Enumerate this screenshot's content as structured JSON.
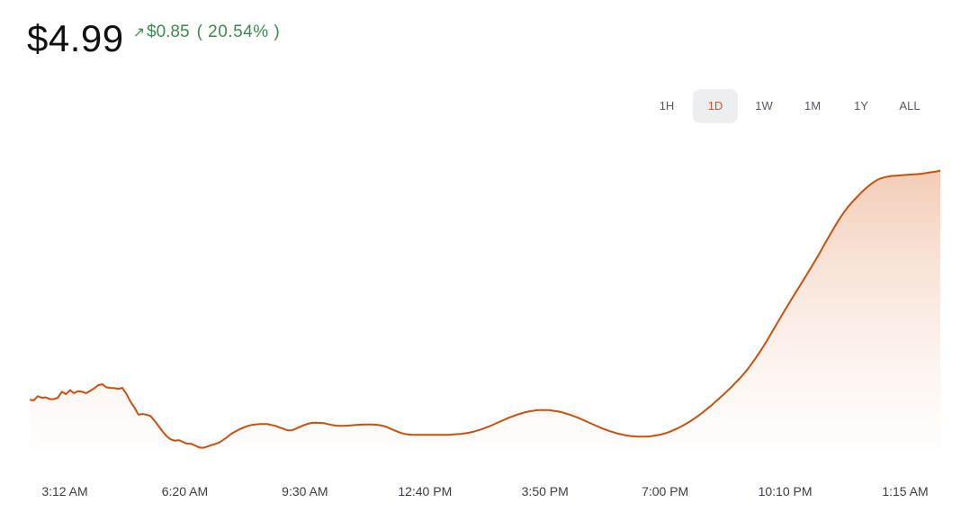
{
  "header": {
    "price": "$4.99",
    "change_arrow_icon": "arrow-up-right-icon",
    "change_amount": "$0.85",
    "change_percent": "( 20.54% )",
    "change_color": "#3d8a51"
  },
  "ranges": [
    {
      "label": "1H",
      "active": false
    },
    {
      "label": "1D",
      "active": true
    },
    {
      "label": "1W",
      "active": false
    },
    {
      "label": "1M",
      "active": false
    },
    {
      "label": "1Y",
      "active": false
    },
    {
      "label": "ALL",
      "active": false
    }
  ],
  "chart_data": {
    "type": "area",
    "color": "#c8500f",
    "x_tick_labels": [
      "3:12 AM",
      "6:20 AM",
      "9:30 AM",
      "12:40 PM",
      "3:50 PM",
      "7:00 PM",
      "10:10 PM",
      "1:15 AM"
    ],
    "y_range": [
      4.04,
      5.01
    ],
    "series": [
      {
        "values": [
          4.218,
          4.216,
          4.23,
          4.225,
          4.226,
          4.22,
          4.22,
          4.225,
          4.245,
          4.237,
          4.25,
          4.24,
          4.247,
          4.245,
          4.24,
          4.248,
          4.256,
          4.267,
          4.27,
          4.26,
          4.258,
          4.257,
          4.255,
          4.258,
          4.238,
          4.212,
          4.192,
          4.168,
          4.17,
          4.168,
          4.163,
          4.147,
          4.129,
          4.111,
          4.095,
          4.085,
          4.08,
          4.082,
          4.076,
          4.07,
          4.07,
          4.064,
          4.058,
          4.056,
          4.06,
          4.065,
          4.069,
          4.074,
          4.082,
          4.092,
          4.103,
          4.111,
          4.118,
          4.124,
          4.129,
          4.133,
          4.135,
          4.136,
          4.136,
          4.136,
          4.133,
          4.13,
          4.125,
          4.12,
          4.115,
          4.115,
          4.12,
          4.126,
          4.132,
          4.137,
          4.14,
          4.141,
          4.14,
          4.139,
          4.136,
          4.133,
          4.131,
          4.13,
          4.13,
          4.131,
          4.132,
          4.133,
          4.134,
          4.135,
          4.135,
          4.135,
          4.134,
          4.132,
          4.129,
          4.124,
          4.118,
          4.112,
          4.107,
          4.103,
          4.101,
          4.1,
          4.1,
          4.1,
          4.1,
          4.1,
          4.1,
          4.1,
          4.1,
          4.1,
          4.1,
          4.101,
          4.102,
          4.103,
          4.105,
          4.107,
          4.11,
          4.114,
          4.118,
          4.123,
          4.128,
          4.134,
          4.14,
          4.146,
          4.152,
          4.158,
          4.163,
          4.168,
          4.172,
          4.176,
          4.179,
          4.181,
          4.183,
          4.183,
          4.183,
          4.183,
          4.181,
          4.179,
          4.176,
          4.172,
          4.168,
          4.163,
          4.158,
          4.152,
          4.146,
          4.14,
          4.134,
          4.128,
          4.122,
          4.117,
          4.112,
          4.108,
          4.104,
          4.101,
          4.098,
          4.096,
          4.095,
          4.094,
          4.094,
          4.094,
          4.095,
          4.097,
          4.099,
          4.102,
          4.106,
          4.111,
          4.117,
          4.123,
          4.13,
          4.138,
          4.146,
          4.155,
          4.165,
          4.175,
          4.186,
          4.197,
          4.209,
          4.221,
          4.233,
          4.246,
          4.259,
          4.273,
          4.287,
          4.302,
          4.318,
          4.336,
          4.355,
          4.375,
          4.396,
          4.418,
          4.441,
          4.464,
          4.487,
          4.51,
          4.533,
          4.555,
          4.577,
          4.599,
          4.621,
          4.643,
          4.665,
          4.688,
          4.711,
          4.735,
          4.759,
          4.783,
          4.806,
          4.828,
          4.848,
          4.866,
          4.882,
          4.897,
          4.911,
          4.924,
          4.936,
          4.947,
          4.956,
          4.963,
          4.967,
          4.97,
          4.972,
          4.973,
          4.974,
          4.975,
          4.976,
          4.977,
          4.978,
          4.979,
          4.981,
          4.983,
          4.985,
          4.987,
          4.99
        ]
      }
    ]
  }
}
